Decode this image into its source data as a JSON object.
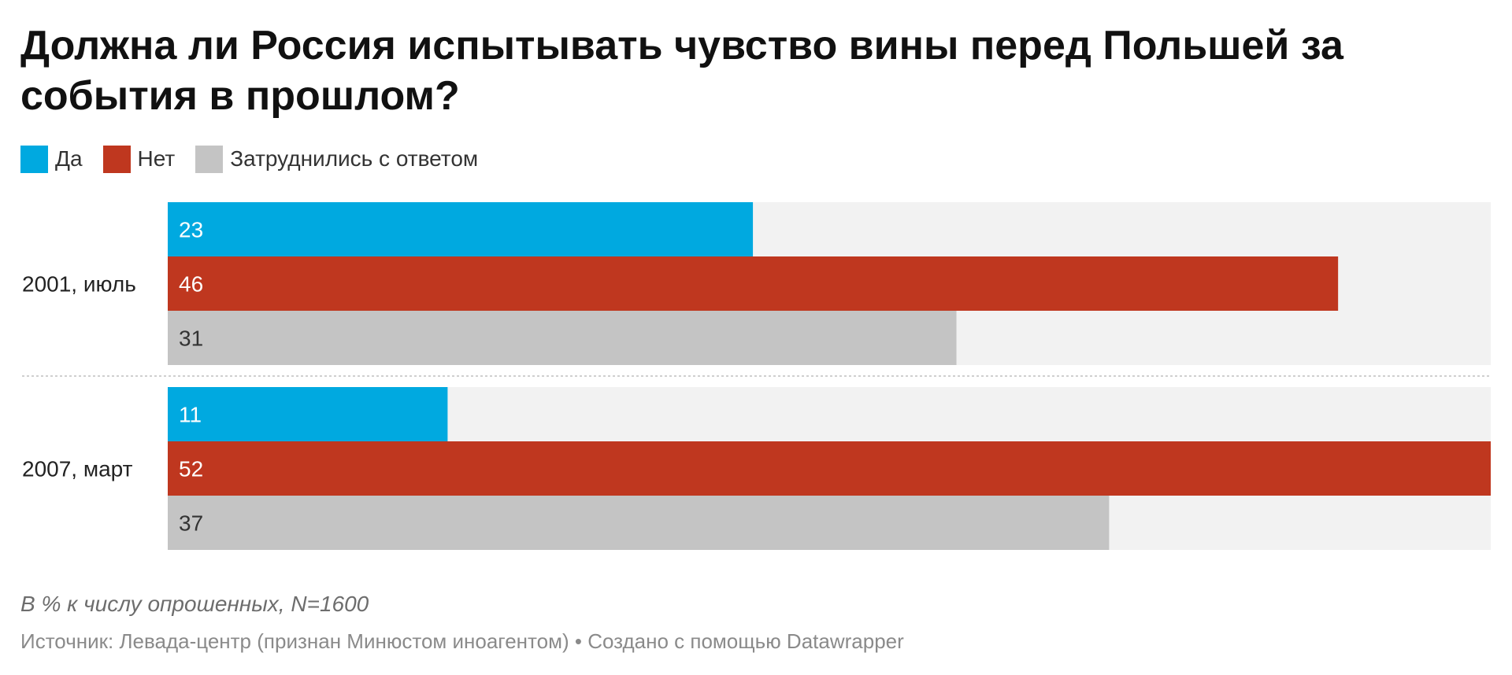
{
  "title": "Должна ли Россия испытывать чувство вины перед Польшей за события в прошлом?",
  "notes": "В % к числу опрошенных, N=1600",
  "source": "Источник: Левада-центр (признан Минюстом иноагентом) • Создано с помощью Datawrapper",
  "colors": {
    "yes": "#00a9e0",
    "no": "#bf371f",
    "unsure": "#c4c4c4",
    "track": "#f2f2f2"
  },
  "chart_data": {
    "type": "bar",
    "orientation": "horizontal",
    "grouped": true,
    "categories": [
      "2001, июль",
      "2007, март"
    ],
    "series": [
      {
        "name": "Да",
        "color": "#00a9e0",
        "values": [
          23,
          11
        ]
      },
      {
        "name": "Нет",
        "color": "#bf371f",
        "values": [
          46,
          52
        ]
      },
      {
        "name": "Затруднились с ответом",
        "color": "#c4c4c4",
        "values": [
          31,
          37
        ]
      }
    ],
    "xlim": [
      0,
      52
    ],
    "legend": "top-left",
    "data_labels": true,
    "grid": false
  }
}
